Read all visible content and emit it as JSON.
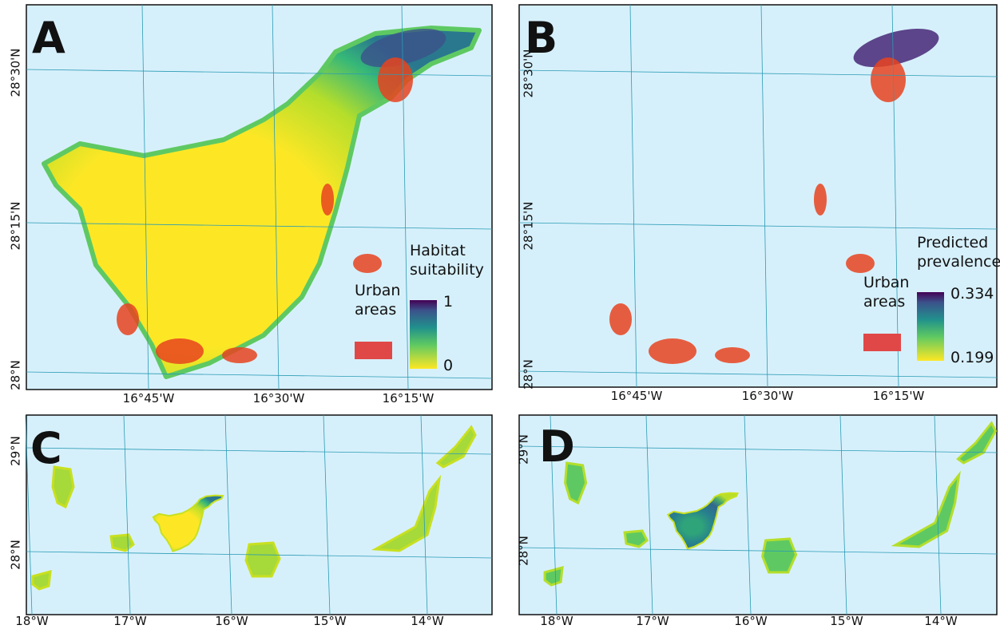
{
  "panels": [
    {
      "label": "A",
      "lat_labels": [
        "28°30'N",
        "28°15'N",
        "28°N"
      ],
      "lon_labels": [
        "16°45'W",
        "16°30'W",
        "16°15'W"
      ],
      "legend": {
        "title": [
          "Habitat",
          "suitability"
        ],
        "max": 1,
        "min": 0,
        "urban": [
          "Urban",
          "areas"
        ]
      }
    },
    {
      "label": "B",
      "lat_labels": [
        "28°30'N",
        "28°15'N",
        "28°N"
      ],
      "lon_labels": [
        "16°45'W",
        "16°30'W",
        "16°15'W"
      ],
      "legend": {
        "title": [
          "Predicted",
          "prevalence"
        ],
        "max": 0.334,
        "min": 0.199,
        "urban": [
          "Urban",
          "areas"
        ]
      }
    },
    {
      "label": "C",
      "lat_labels": [
        "29°N",
        "28°N"
      ],
      "lon_labels": [
        "18°W",
        "17°W",
        "16°W",
        "15°W",
        "14°W"
      ]
    },
    {
      "label": "D",
      "lat_labels": [
        "29°N",
        "28°N"
      ],
      "lon_labels": [
        "18°W",
        "17°W",
        "16°W",
        "15°W",
        "14°W"
      ]
    }
  ]
}
